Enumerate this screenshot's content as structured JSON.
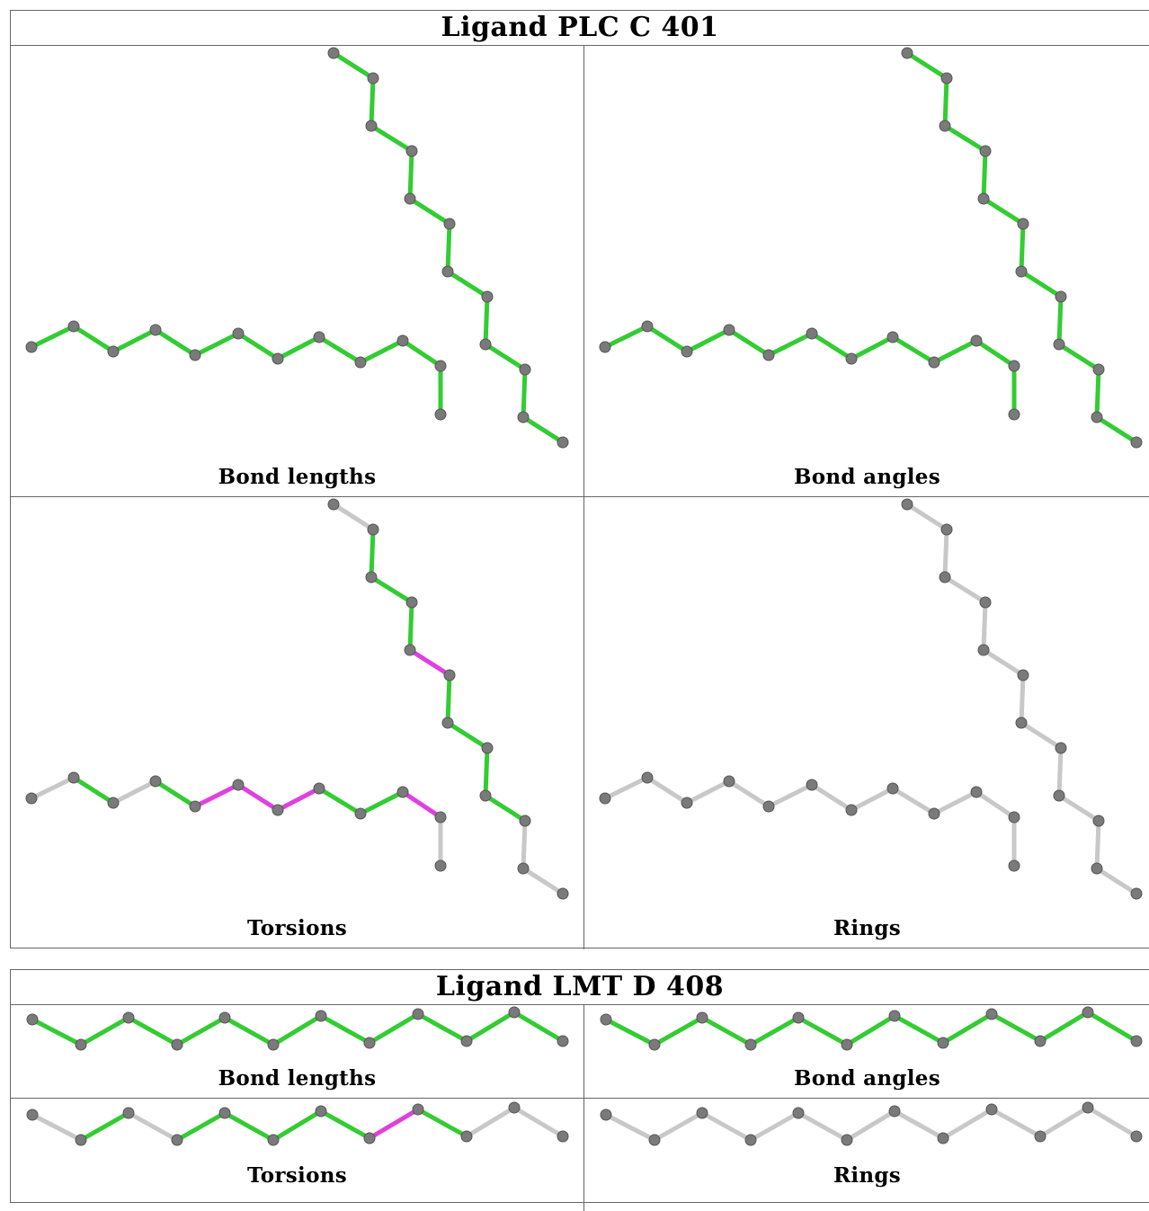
{
  "panels": [
    {
      "title": "Ligand PLC C 401",
      "cells": [
        {
          "caption": "Bond lengths",
          "colors": [
            "green"
          ]
        },
        {
          "caption": "Bond angles",
          "colors": [
            "green"
          ]
        },
        {
          "caption": "Torsions",
          "colors": [
            "gray",
            "green",
            "gray",
            "green",
            "magenta",
            "magenta",
            "magenta",
            "green",
            "green",
            "magenta",
            "gray",
            "gray",
            "green",
            "green",
            "green",
            "magenta",
            "green",
            "green",
            "green",
            "green",
            "gray"
          ]
        },
        {
          "caption": "Rings",
          "colors": [
            "gray"
          ]
        }
      ]
    },
    {
      "title": "Ligand LMT D 408",
      "cells": [
        {
          "caption": "Bond lengths",
          "colors": [
            "green"
          ]
        },
        {
          "caption": "Bond angles",
          "colors": [
            "green"
          ]
        },
        {
          "caption": "Torsions",
          "colors": [
            "gray",
            "green",
            "gray",
            "green",
            "green",
            "green",
            "green",
            "magenta",
            "green",
            "gray"
          ]
        },
        {
          "caption": "Rings",
          "colors": [
            "gray"
          ]
        }
      ]
    }
  ],
  "palette": {
    "green": "#33cc33",
    "magenta": "#e040e0",
    "gray": "#c8c8c8",
    "atom": "#7a7a7a"
  }
}
